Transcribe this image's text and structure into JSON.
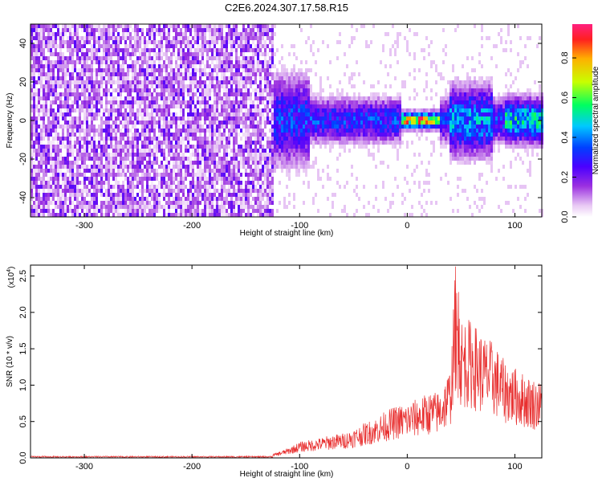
{
  "title": "C2E6.2024.307.17.58.R15",
  "chart_data": [
    {
      "type": "heatmap",
      "title": "C2E6.2024.307.17.58.R15",
      "xlabel": "Height of straight line (km)",
      "ylabel": "Frequency (Hz)",
      "xlim": [
        -350,
        125
      ],
      "ylim": [
        -50,
        50
      ],
      "x_ticks": [
        -300,
        -200,
        -100,
        0,
        100
      ],
      "y_ticks": [
        -40,
        -20,
        0,
        20,
        40
      ],
      "colorbar": {
        "label": "Normalized spectral amplitude",
        "range": [
          0.0,
          0.97
        ],
        "ticks": [
          0.0,
          0.2,
          0.4,
          0.6,
          0.8
        ],
        "colormap": [
          "#ffffff",
          "#e8c8f4",
          "#9b30e0",
          "#4b00ff",
          "#0040ff",
          "#00c8ff",
          "#00ff60",
          "#c8ff00",
          "#ffb000",
          "#ff2020",
          "#ff2080"
        ]
      },
      "description_of_field": "noise floor across all frequencies for heights below about -125 km; narrow-band signal centered near 0 Hz for heights above about -125 km, strongest (0.9+) between 0 and 30 km"
    },
    {
      "type": "line",
      "xlabel": "Height of straight line (km)",
      "ylabel": "SNR (10 * v/v)",
      "y_multiplier_label": "(x10",
      "y_multiplier_exp": "4",
      "y_multiplier_close": ")",
      "xlim": [
        -350,
        125
      ],
      "ylim": [
        0,
        2.65
      ],
      "x_ticks": [
        -300,
        -200,
        -100,
        0,
        100
      ],
      "y_ticks": [
        0.0,
        0.5,
        1.0,
        1.5,
        2.0,
        2.5
      ],
      "y_tick_labels": [
        "0.0",
        "0.5",
        "1.0",
        "1.5",
        "2.0",
        "2.5"
      ],
      "color": "#e83030",
      "envelope": {
        "x": [
          -350,
          -130,
          -120,
          -110,
          -100,
          -90,
          -80,
          -70,
          -60,
          -50,
          -40,
          -30,
          -20,
          -10,
          0,
          10,
          20,
          30,
          40,
          45,
          50,
          60,
          70,
          80,
          90,
          100,
          110,
          125
        ],
        "y": [
          0.02,
          0.03,
          0.08,
          0.14,
          0.22,
          0.25,
          0.28,
          0.32,
          0.34,
          0.4,
          0.48,
          0.55,
          0.65,
          0.72,
          0.76,
          0.82,
          0.9,
          0.92,
          1.25,
          2.65,
          1.95,
          1.9,
          1.7,
          1.6,
          1.35,
          1.25,
          1.15,
          1.05
        ]
      }
    }
  ]
}
